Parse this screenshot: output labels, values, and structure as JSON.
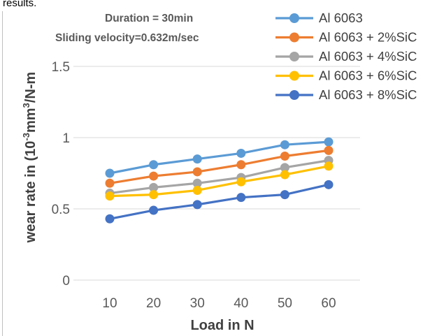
{
  "header_fragment": "results.",
  "chart_data": {
    "type": "line",
    "x": [
      10,
      20,
      30,
      40,
      50,
      60
    ],
    "xlabel": "Load in N",
    "ylabel_parts": [
      "wear rate in (10",
      "-3",
      "mm",
      "3",
      "/N-m"
    ],
    "ylim": [
      0,
      1.5
    ],
    "yticks": [
      0,
      0.5,
      1,
      1.5
    ],
    "ytick_labels": [
      "0",
      "0.5",
      "1",
      "1.5"
    ],
    "grid": true,
    "legend_position": "top-right",
    "annotations": [
      "Duration = 30min",
      "Sliding velocity=0.632m/sec"
    ],
    "series": [
      {
        "name": "Al 6063",
        "color": "#5B9BD5",
        "values": [
          0.75,
          0.81,
          0.85,
          0.89,
          0.95,
          0.97
        ]
      },
      {
        "name": "Al 6063 + 2%SiC",
        "color": "#ED7D31",
        "values": [
          0.68,
          0.73,
          0.76,
          0.81,
          0.87,
          0.91
        ]
      },
      {
        "name": "Al 6063 + 4%SiC",
        "color": "#A5A5A5",
        "values": [
          0.61,
          0.65,
          0.68,
          0.72,
          0.79,
          0.84
        ]
      },
      {
        "name": "Al 6063 + 6%SiC",
        "color": "#FFC000",
        "values": [
          0.59,
          0.6,
          0.63,
          0.69,
          0.74,
          0.8
        ]
      },
      {
        "name": "Al 6063 + 8%SiC",
        "color": "#4472C4",
        "values": [
          0.43,
          0.49,
          0.53,
          0.58,
          0.6,
          0.67
        ]
      }
    ]
  }
}
